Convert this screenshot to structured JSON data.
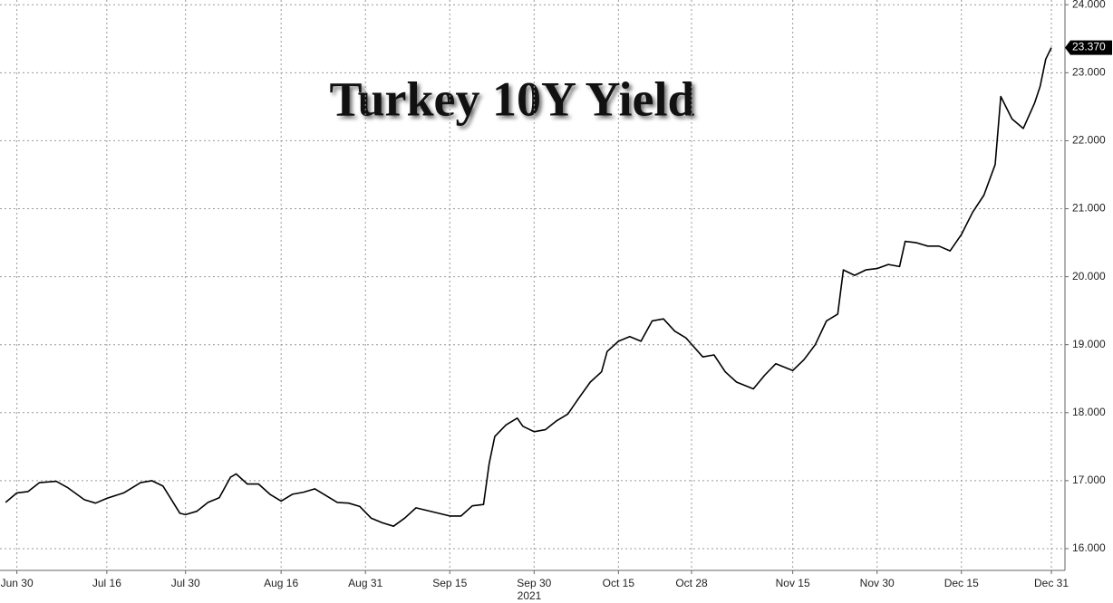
{
  "chart_data": {
    "type": "line",
    "title": "Turkey 10Y Yield",
    "xlabel": "2021",
    "x": [
      "2021-06-28",
      "2021-06-30",
      "2021-07-02",
      "2021-07-04",
      "2021-07-07",
      "2021-07-09",
      "2021-07-12",
      "2021-07-14",
      "2021-07-16",
      "2021-07-19",
      "2021-07-22",
      "2021-07-24",
      "2021-07-26",
      "2021-07-29",
      "2021-07-30",
      "2021-08-01",
      "2021-08-03",
      "2021-08-05",
      "2021-08-07",
      "2021-08-08",
      "2021-08-10",
      "2021-08-12",
      "2021-08-14",
      "2021-08-16",
      "2021-08-18",
      "2021-08-20",
      "2021-08-22",
      "2021-08-24",
      "2021-08-26",
      "2021-08-28",
      "2021-08-30",
      "2021-09-01",
      "2021-09-03",
      "2021-09-05",
      "2021-09-07",
      "2021-09-09",
      "2021-09-11",
      "2021-09-13",
      "2021-09-15",
      "2021-09-17",
      "2021-09-19",
      "2021-09-21",
      "2021-09-22",
      "2021-09-23",
      "2021-09-25",
      "2021-09-27",
      "2021-09-28",
      "2021-09-30",
      "2021-10-02",
      "2021-10-04",
      "2021-10-06",
      "2021-10-08",
      "2021-10-10",
      "2021-10-12",
      "2021-10-13",
      "2021-10-15",
      "2021-10-17",
      "2021-10-19",
      "2021-10-21",
      "2021-10-23",
      "2021-10-25",
      "2021-10-27",
      "2021-10-30",
      "2021-11-01",
      "2021-11-03",
      "2021-11-05",
      "2021-11-08",
      "2021-11-10",
      "2021-11-12",
      "2021-11-15",
      "2021-11-17",
      "2021-11-19",
      "2021-11-21",
      "2021-11-23",
      "2021-11-24",
      "2021-11-26",
      "2021-11-28",
      "2021-11-30",
      "2021-12-02",
      "2021-12-04",
      "2021-12-05",
      "2021-12-07",
      "2021-12-09",
      "2021-12-11",
      "2021-12-13",
      "2021-12-15",
      "2021-12-17",
      "2021-12-19",
      "2021-12-21",
      "2021-12-22",
      "2021-12-24",
      "2021-12-26",
      "2021-12-28",
      "2021-12-29",
      "2021-12-30",
      "2021-12-31"
    ],
    "series": [
      {
        "color": "#000000",
        "values": [
          16.68,
          16.82,
          16.84,
          16.97,
          16.99,
          16.9,
          16.72,
          16.67,
          16.74,
          16.82,
          16.97,
          17.0,
          16.92,
          16.52,
          16.5,
          16.55,
          16.68,
          16.75,
          17.05,
          17.1,
          16.95,
          16.95,
          16.8,
          16.7,
          16.8,
          16.83,
          16.88,
          16.78,
          16.68,
          16.67,
          16.62,
          16.45,
          16.38,
          16.33,
          16.45,
          16.6,
          16.56,
          16.52,
          16.48,
          16.48,
          16.63,
          16.65,
          17.25,
          17.65,
          17.82,
          17.92,
          17.8,
          17.72,
          17.75,
          17.88,
          17.98,
          18.22,
          18.45,
          18.6,
          18.9,
          19.05,
          19.12,
          19.05,
          19.35,
          19.38,
          19.2,
          19.1,
          18.82,
          18.85,
          18.6,
          18.45,
          18.35,
          18.55,
          18.72,
          18.62,
          18.78,
          19.0,
          19.35,
          19.45,
          20.1,
          20.02,
          20.1,
          20.12,
          20.18,
          20.15,
          20.52,
          20.5,
          20.45,
          20.45,
          20.38,
          20.62,
          20.95,
          21.2,
          21.65,
          22.65,
          22.32,
          22.18,
          22.55,
          22.8,
          23.2,
          23.37
        ],
        "end_label": {
          "value": 23.37,
          "label": "23.370"
        }
      }
    ],
    "xlim": [
      "2021-06-27",
      "2021-12-31"
    ],
    "xticks": [
      {
        "value": "2021-06-30",
        "label": "Jun 30"
      },
      {
        "value": "2021-07-16",
        "label": "Jul 16"
      },
      {
        "value": "2021-07-30",
        "label": "Jul 30"
      },
      {
        "value": "2021-08-16",
        "label": "Aug 16"
      },
      {
        "value": "2021-08-31",
        "label": "Aug 31"
      },
      {
        "value": "2021-09-15",
        "label": "Sep 15"
      },
      {
        "value": "2021-09-30",
        "label": "Sep 30"
      },
      {
        "value": "2021-10-15",
        "label": "Oct 15"
      },
      {
        "value": "2021-10-28",
        "label": "Oct 28"
      },
      {
        "value": "2021-11-15",
        "label": "Nov 15"
      },
      {
        "value": "2021-11-30",
        "label": "Nov 30"
      },
      {
        "value": "2021-12-15",
        "label": "Dec 15"
      },
      {
        "value": "2021-12-31",
        "label": "Dec 31"
      }
    ],
    "ylim": [
      15.68,
      24.07
    ],
    "yticks": [
      {
        "value": 16,
        "label": "16.000"
      },
      {
        "value": 17,
        "label": "17.000"
      },
      {
        "value": 18,
        "label": "18.000"
      },
      {
        "value": 19,
        "label": "19.000"
      },
      {
        "value": 20,
        "label": "20.000"
      },
      {
        "value": 21,
        "label": "21.000"
      },
      {
        "value": 22,
        "label": "22.000"
      },
      {
        "value": 23,
        "label": "23.000"
      },
      {
        "value": 24,
        "label": "24.000"
      }
    ],
    "grid": true
  }
}
